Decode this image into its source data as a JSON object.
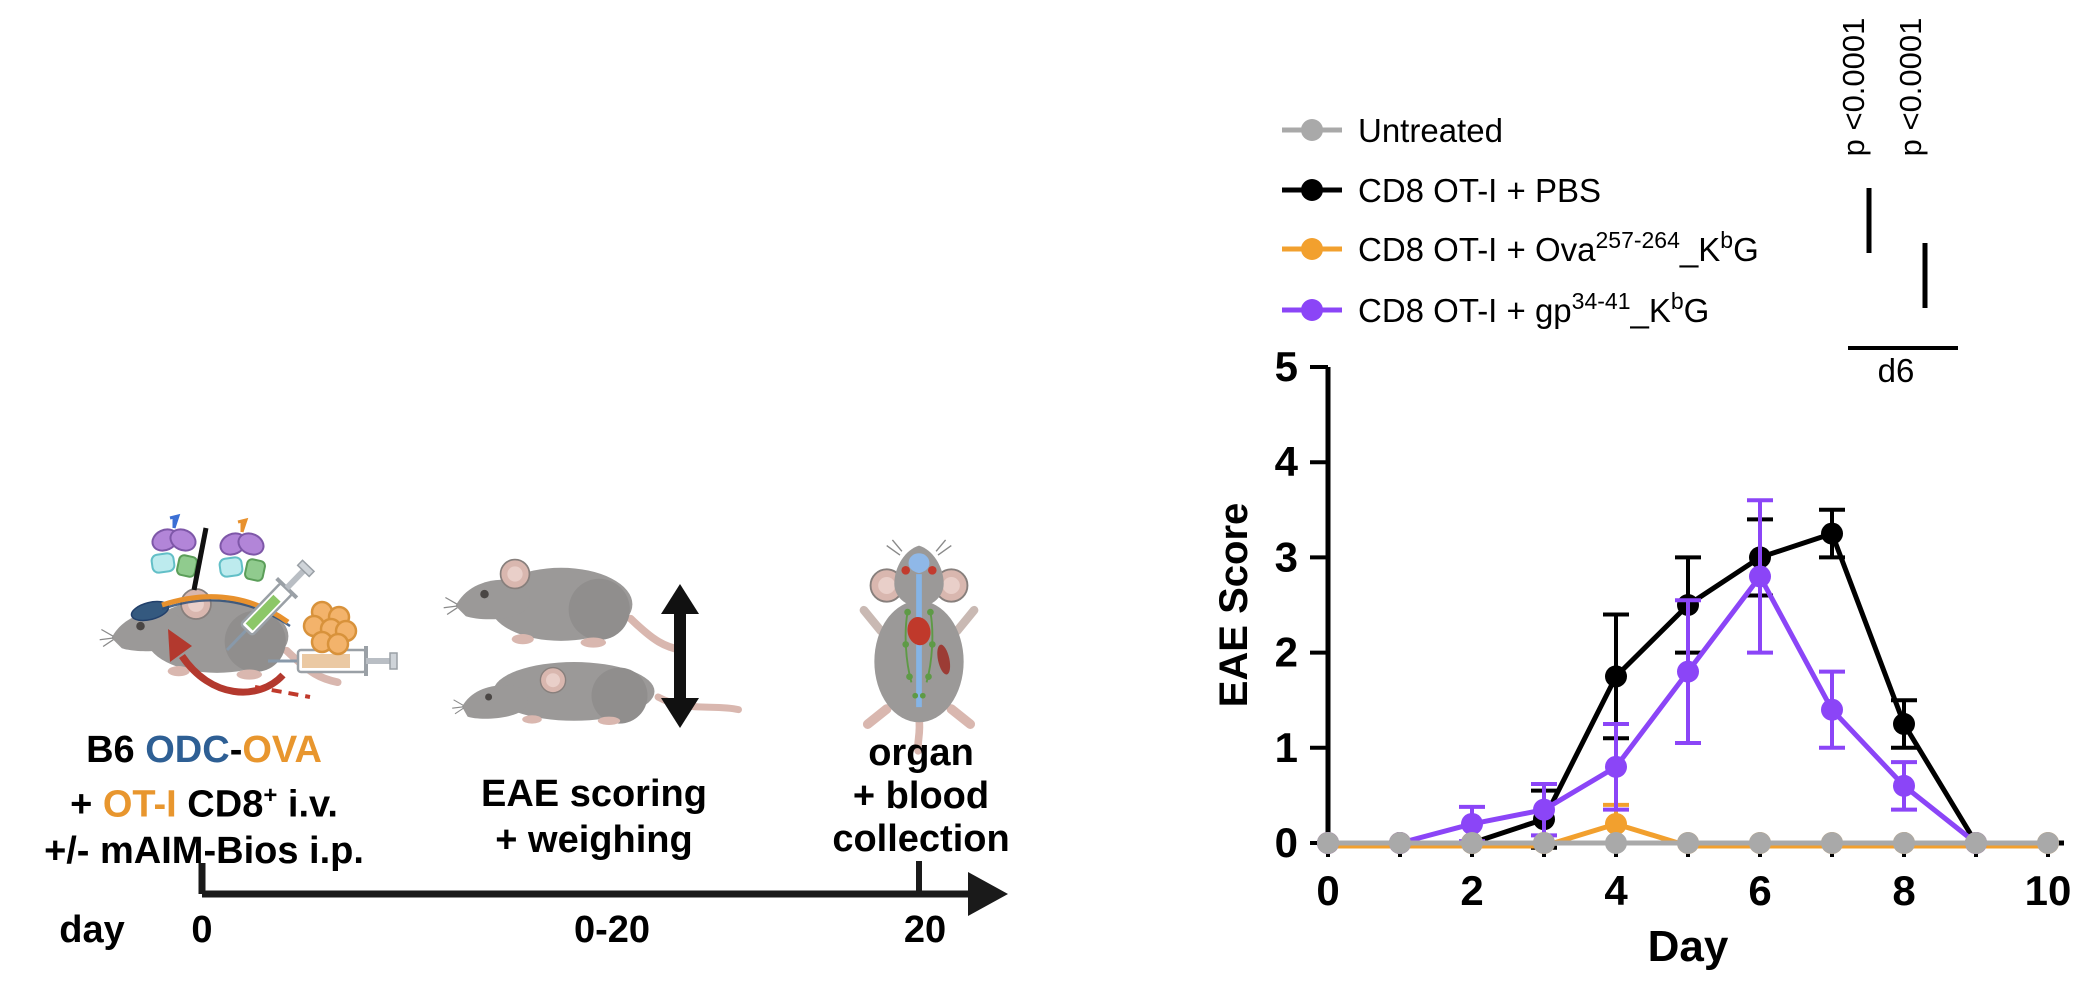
{
  "figure": {
    "bg": "#ffffff",
    "schematic": {
      "treatment_text": {
        "b6": "B6 ",
        "odc": "ODC",
        "dash": "-",
        "ova": "OVA",
        "plus": "+ ",
        "oti": "OT-I",
        "cd8": " CD8",
        "cd8_sup": "+",
        "iv": " i.v.",
        "line3": "+/- mAIM-Bios i.p.",
        "odc_color": "#2E5F94",
        "ova_color": "#E8962E",
        "oti_color": "#E8962E"
      },
      "scoring_text": {
        "line1": "EAE scoring",
        "line2": "+ weighing"
      },
      "collection_text": {
        "line1": "organ",
        "line2": "+ blood",
        "line3": "collection"
      },
      "timeline": {
        "axis_label": "day",
        "start": "0",
        "range": "0-20",
        "end": "20"
      }
    },
    "chart_data": {
      "type": "line",
      "xlabel": "Day",
      "ylabel": "EAE Score",
      "xlim": [
        0,
        10
      ],
      "ylim": [
        0,
        5
      ],
      "xticks": [
        0,
        2,
        4,
        6,
        8,
        10
      ],
      "xticks_minor": [
        0,
        1,
        2,
        3,
        4,
        5,
        6,
        7,
        8,
        9,
        10
      ],
      "yticks": [
        0,
        1,
        2,
        3,
        4,
        5
      ],
      "x": [
        0,
        1,
        2,
        3,
        4,
        5,
        6,
        7,
        8,
        9,
        10
      ],
      "series": [
        {
          "name_parts": [
            {
              "t": "Untreated"
            }
          ],
          "color": "#A9A9A9",
          "values": [
            0,
            0,
            0,
            0,
            0,
            0,
            0,
            0,
            0,
            0,
            0
          ],
          "errors": [
            0,
            0,
            0,
            0,
            0,
            0,
            0,
            0,
            0,
            0,
            0
          ]
        },
        {
          "name_parts": [
            {
              "t": "CD8 OT-I + PBS"
            }
          ],
          "color": "#000000",
          "values": [
            0,
            0,
            0,
            0.25,
            1.75,
            2.5,
            3,
            3.25,
            1.25,
            0,
            null
          ],
          "errors": [
            0,
            0,
            0,
            0.3,
            0.65,
            0.5,
            0.4,
            0.25,
            0.25,
            0,
            null
          ]
        },
        {
          "name_parts": [
            {
              "t": "CD8 OT-I + Ova"
            },
            {
              "t": "257-264",
              "sup": true
            },
            {
              "t": "_K"
            },
            {
              "t": "b",
              "sup": true
            },
            {
              "t": "G"
            }
          ],
          "color": "#F2A02E",
          "values": [
            0,
            0,
            0,
            0,
            0.2,
            0,
            0,
            0,
            0,
            0,
            0
          ],
          "errors": [
            0,
            0,
            0,
            0,
            0.2,
            0,
            0,
            0,
            0,
            0,
            0
          ]
        },
        {
          "name_parts": [
            {
              "t": "CD8 OT-I + gp"
            },
            {
              "t": "34-41",
              "sup": true
            },
            {
              "t": "_K"
            },
            {
              "t": "b",
              "sup": true
            },
            {
              "t": "G"
            }
          ],
          "color": "#8B45F7",
          "values": [
            0,
            0,
            0.2,
            0.35,
            0.8,
            1.8,
            2.8,
            1.4,
            0.6,
            0,
            null
          ],
          "errors": [
            0,
            0,
            0.18,
            0.27,
            0.45,
            0.75,
            0.8,
            0.4,
            0.25,
            0,
            null
          ]
        }
      ],
      "annotations": {
        "p1": "p <0.0001",
        "p2": "p <0.0001",
        "bracket_label": "d6"
      },
      "legend_position": "top-left",
      "grid": false
    }
  }
}
